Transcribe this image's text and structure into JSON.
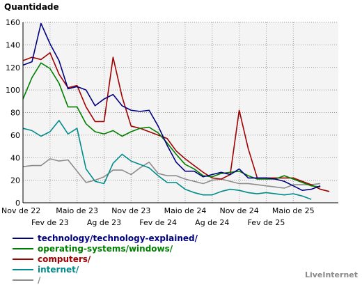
{
  "chart_data": {
    "type": "line",
    "title": "Quantidade",
    "ylim": [
      0,
      160
    ],
    "y_ticks": [
      0,
      20,
      40,
      60,
      80,
      100,
      120,
      140,
      160
    ],
    "x_count": 36,
    "x_tick_labels_top": [
      {
        "i": 0,
        "label": "Nov de 22"
      },
      {
        "i": 6,
        "label": "Maio de 23"
      },
      {
        "i": 12,
        "label": "Nov de 23"
      },
      {
        "i": 18,
        "label": "Maio de 24"
      },
      {
        "i": 24,
        "label": "Nov de 24"
      },
      {
        "i": 30,
        "label": "Maio de 25"
      }
    ],
    "x_tick_labels_bottom": [
      {
        "i": 3,
        "label": "Fev de 23"
      },
      {
        "i": 9,
        "label": "Ag de 23"
      },
      {
        "i": 15,
        "label": "Fev de 24"
      },
      {
        "i": 21,
        "label": "Ag de 24"
      },
      {
        "i": 27,
        "label": "Fev de 25"
      }
    ],
    "grid": true,
    "legend_position": "bottom-left",
    "series": [
      {
        "name": "technology/technology-explained/",
        "color": "#000080",
        "values": [
          122,
          125,
          159,
          141,
          126,
          101,
          103,
          100,
          86,
          92,
          96,
          86,
          82,
          81,
          82,
          68,
          51,
          36,
          28,
          28,
          23,
          25,
          27,
          25,
          30,
          22,
          22,
          22,
          21,
          19,
          15,
          11,
          12,
          15
        ]
      },
      {
        "name": "operating-systems/windows/",
        "color": "#008000",
        "values": [
          92,
          111,
          124,
          119,
          106,
          85,
          85,
          70,
          63,
          61,
          64,
          59,
          63,
          66,
          67,
          62,
          53,
          43,
          34,
          30,
          24,
          23,
          26,
          27,
          28,
          24,
          21,
          21,
          21,
          24,
          21,
          18,
          15,
          14
        ]
      },
      {
        "name": "computers/",
        "color": "#a00000",
        "values": [
          126,
          129,
          127,
          133,
          114,
          102,
          104,
          85,
          72,
          72,
          129,
          94,
          68,
          66,
          63,
          60,
          57,
          46,
          39,
          33,
          27,
          22,
          21,
          25,
          82,
          48,
          22,
          22,
          22,
          22,
          22,
          19,
          16,
          12,
          10
        ]
      },
      {
        "name": "internet/",
        "color": "#008b8b",
        "values": [
          66,
          64,
          59,
          63,
          73,
          61,
          66,
          30,
          19,
          17,
          35,
          43,
          37,
          34,
          31,
          24,
          18,
          18,
          12,
          9,
          7,
          7,
          10,
          12,
          11,
          9,
          8,
          9,
          8,
          7,
          8,
          6,
          3
        ]
      },
      {
        "name": "/",
        "color": "#8c8c8c",
        "values": [
          32,
          33,
          33,
          39,
          37,
          38,
          28,
          18,
          20,
          23,
          29,
          29,
          25,
          31,
          36,
          26,
          24,
          24,
          21,
          19,
          17,
          20,
          21,
          19,
          17,
          17,
          16,
          15,
          14,
          13,
          16,
          16,
          16,
          17
        ]
      }
    ],
    "credit": "LiveInternet"
  }
}
